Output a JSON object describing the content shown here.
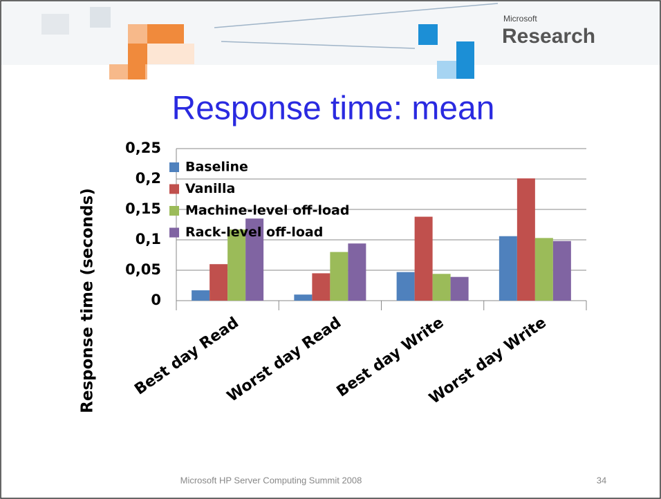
{
  "slide": {
    "logo_small": "Microsoft",
    "logo": "Research",
    "footer": "Microsoft HP Server Computing Summit 2008",
    "page": "34"
  },
  "chart_data": {
    "type": "bar",
    "title": "Response time: mean",
    "y_label": "Response time (seconds)",
    "categories": [
      "Best day Read",
      "Worst day Read",
      "Best day Write",
      "Worst day Write"
    ],
    "series": [
      {
        "name": "Baseline",
        "color": "#4f81bd",
        "values": [
          0.017,
          0.01,
          0.047,
          0.106
        ]
      },
      {
        "name": "Vanilla",
        "color": "#c0504d",
        "values": [
          0.06,
          0.045,
          0.138,
          0.201
        ]
      },
      {
        "name": "Machine-level off-load",
        "color": "#9bbb59",
        "values": [
          0.117,
          0.08,
          0.044,
          0.103
        ]
      },
      {
        "name": "Rack-level off-load",
        "color": "#8064a2",
        "values": [
          0.135,
          0.094,
          0.039,
          0.098
        ]
      }
    ],
    "ylim": [
      0,
      0.25
    ],
    "yticks": [
      0,
      {
        "value": 0.05,
        "label": "0,05"
      },
      {
        "value": 0.1,
        "label": "0,1"
      },
      {
        "value": 0.15,
        "label": "0,15"
      },
      {
        "value": 0.2,
        "label": "0,2"
      },
      {
        "value": 0.25,
        "label": "0,25"
      }
    ],
    "grid": true,
    "legend": "top-left"
  }
}
